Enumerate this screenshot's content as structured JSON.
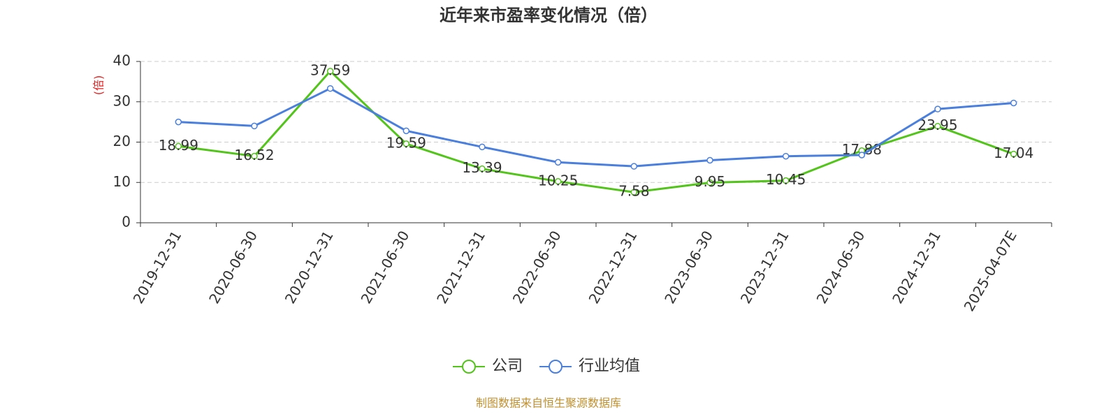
{
  "chart_data": {
    "type": "line",
    "title": "近年来市盈率变化情况（倍）",
    "y_label": "(倍)",
    "source": "制图数据来自恒生聚源数据库",
    "categories": [
      "2019-12-31",
      "2020-06-30",
      "2020-12-31",
      "2021-06-30",
      "2021-12-31",
      "2022-06-30",
      "2022-12-31",
      "2023-06-30",
      "2023-12-31",
      "2024-06-30",
      "2024-12-31",
      "2025-04-07E"
    ],
    "series": [
      {
        "name": "公司",
        "color": "#52c41a",
        "labels": true,
        "values": [
          18.99,
          16.52,
          37.59,
          19.59,
          13.39,
          10.25,
          7.58,
          9.95,
          10.45,
          17.88,
          23.95,
          17.04
        ]
      },
      {
        "name": "行业均值",
        "color": "#4a7fdd",
        "labels": false,
        "values": [
          25,
          24,
          33.3,
          22.8,
          18.8,
          15,
          14,
          15.5,
          16.5,
          16.8,
          28.2,
          29.7
        ]
      }
    ],
    "ylim": [
      0,
      40
    ],
    "yticks": [
      0,
      10,
      20,
      30,
      40
    ],
    "grid": true
  }
}
